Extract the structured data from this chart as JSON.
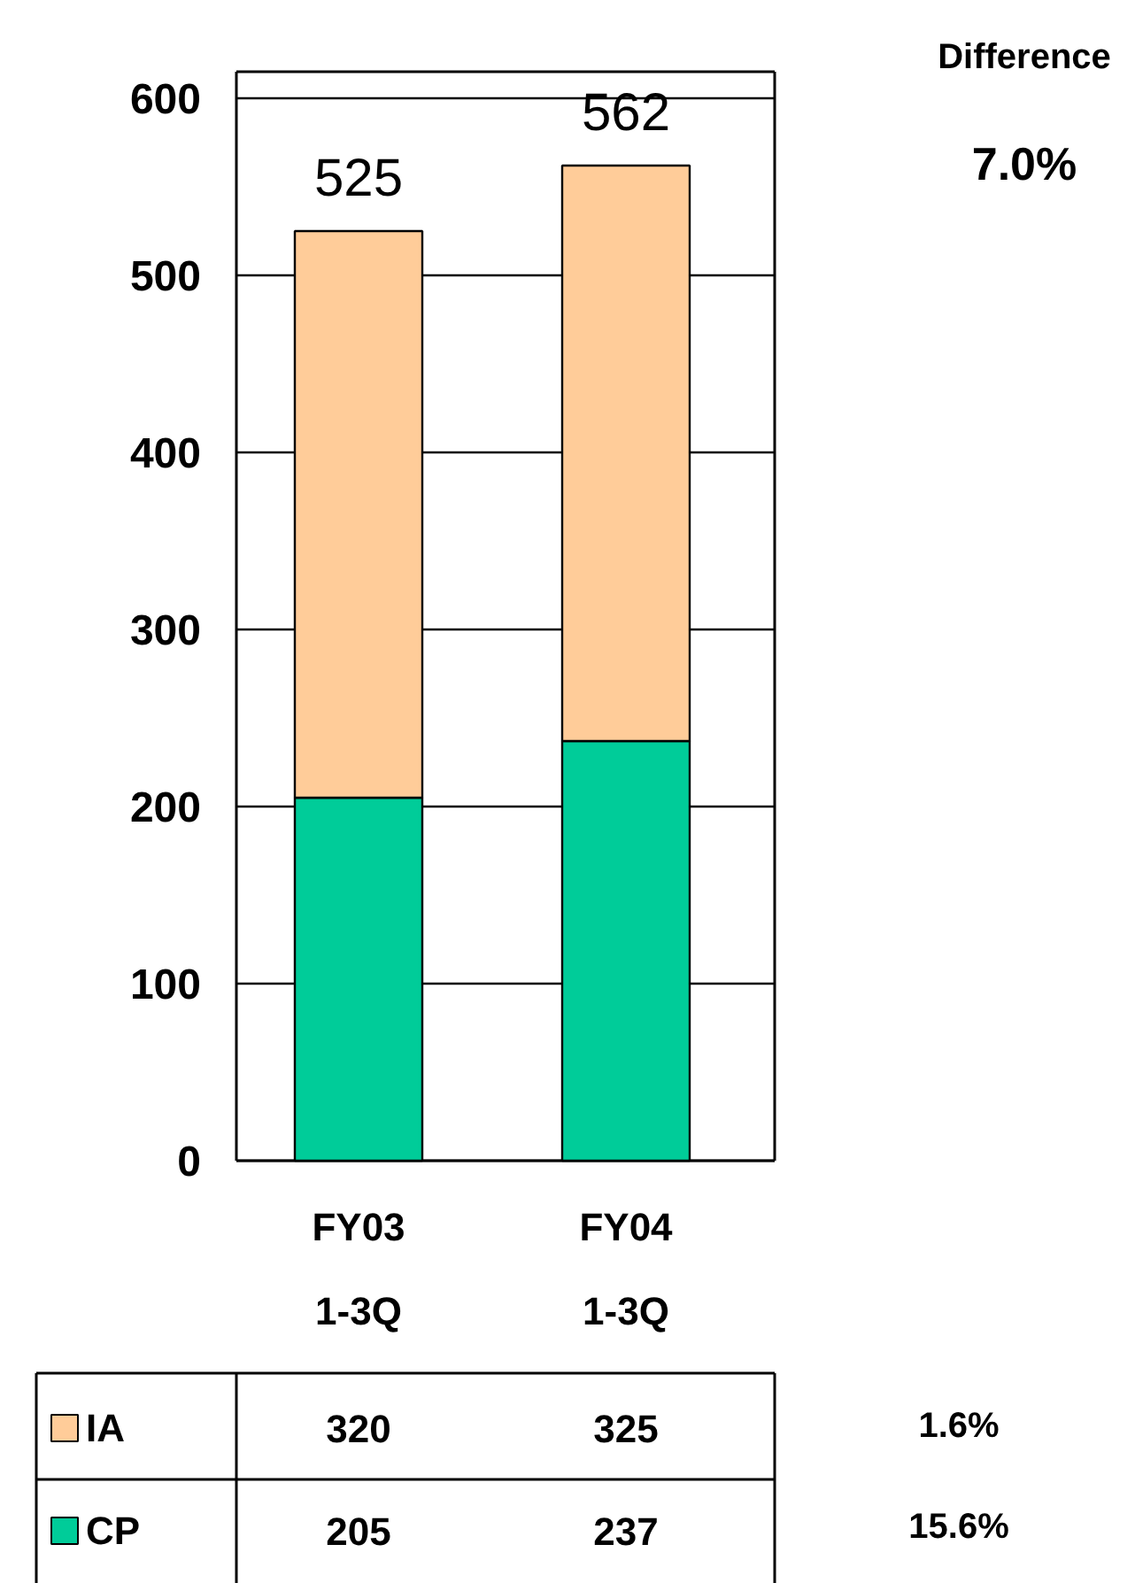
{
  "chart_data": {
    "type": "bar",
    "stacked": true,
    "categories": [
      "FY03\n1-3Q",
      "FY04\n1-3Q"
    ],
    "series": [
      {
        "name": "CP",
        "color": "#00cc99",
        "values": [
          205,
          237
        ]
      },
      {
        "name": "IA",
        "color": "#ffcc99",
        "values": [
          320,
          325
        ]
      }
    ],
    "ylim": [
      0,
      615
    ],
    "yticks": [
      0,
      100,
      200,
      300,
      400,
      500,
      600
    ],
    "grid": "y",
    "legend": "bottom",
    "data_labels": true,
    "totals": [
      "525",
      "562"
    ],
    "annotations": [
      "Difference",
      "7.0%",
      "1.6%",
      "15.6%"
    ]
  }
}
